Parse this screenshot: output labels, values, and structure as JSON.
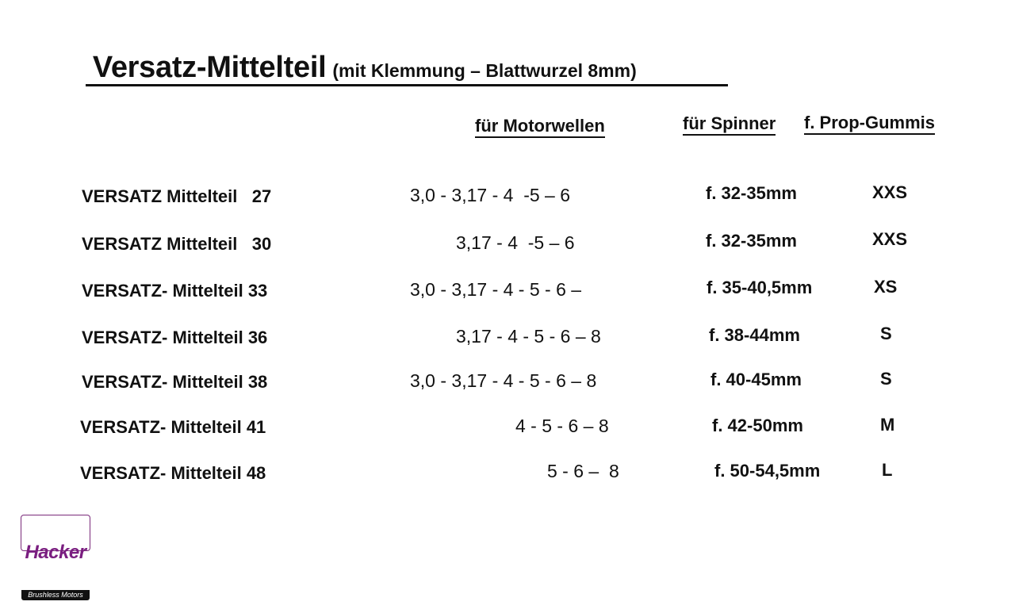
{
  "title": {
    "main": "Versatz-Mittelteil",
    "sub": "(mit Klemmung – Blattwurzel 8mm)"
  },
  "headers": {
    "shafts": "für Motorwellen",
    "spinner": "für Spinner",
    "gummis": "f. Prop-Gummis"
  },
  "rows": [
    {
      "name": "VERSATZ Mittelteil   27",
      "shafts": "3,0 - 3,17 - 4  -5 – 6",
      "spinner": "f. 32-35mm",
      "gummis": "XXS"
    },
    {
      "name": "VERSATZ Mittelteil   30",
      "shafts": "3,17 - 4  -5 – 6",
      "spinner": "f. 32-35mm",
      "gummis": "XXS"
    },
    {
      "name": "VERSATZ- Mittelteil 33",
      "shafts": "3,0 - 3,17 - 4 - 5 - 6 –",
      "spinner": "f. 35-40,5mm",
      "gummis": "XS"
    },
    {
      "name": "VERSATZ- Mittelteil 36",
      "shafts": "3,17 - 4 - 5 - 6 – 8",
      "spinner": "f. 38-44mm",
      "gummis": "S"
    },
    {
      "name": "VERSATZ- Mittelteil 38",
      "shafts": "3,0 - 3,17 - 4 - 5 - 6 – 8",
      "spinner": "f. 40-45mm",
      "gummis": "S"
    },
    {
      "name": "VERSATZ- Mittelteil 41",
      "shafts": "4 - 5 - 6 – 8",
      "spinner": "f. 42-50mm",
      "gummis": "M"
    },
    {
      "name": "VERSATZ- Mittelteil 48",
      "shafts": "5 - 6 –  8",
      "spinner": "f. 50-54,5mm",
      "gummis": "L"
    }
  ],
  "logo": {
    "brand": "Hacker",
    "tagline": "Brushless Motors",
    "color": "#7a1e80"
  }
}
